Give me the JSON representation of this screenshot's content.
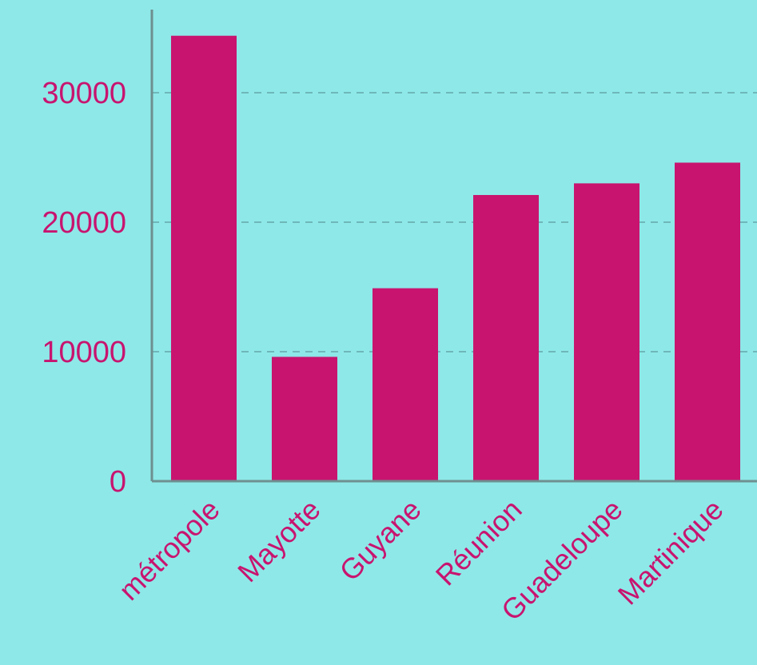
{
  "chart_data": {
    "type": "bar",
    "categories": [
      "métropole",
      "Mayotte",
      "Guyane",
      "Réunion",
      "Guadeloupe",
      "Martinique"
    ],
    "values": [
      34400,
      9600,
      14900,
      22100,
      23000,
      24600
    ],
    "ylim": [
      0,
      35000
    ],
    "yticks": [
      "0",
      "10000",
      "20000",
      "30000"
    ],
    "title": "",
    "xlabel": "",
    "ylabel": "",
    "grid": true,
    "colors": {
      "bar": "#c8146e",
      "background": "#8ee8e8",
      "text": "#c8146e",
      "grid": "#6fb7b9",
      "axis": "#6e8f90"
    }
  }
}
